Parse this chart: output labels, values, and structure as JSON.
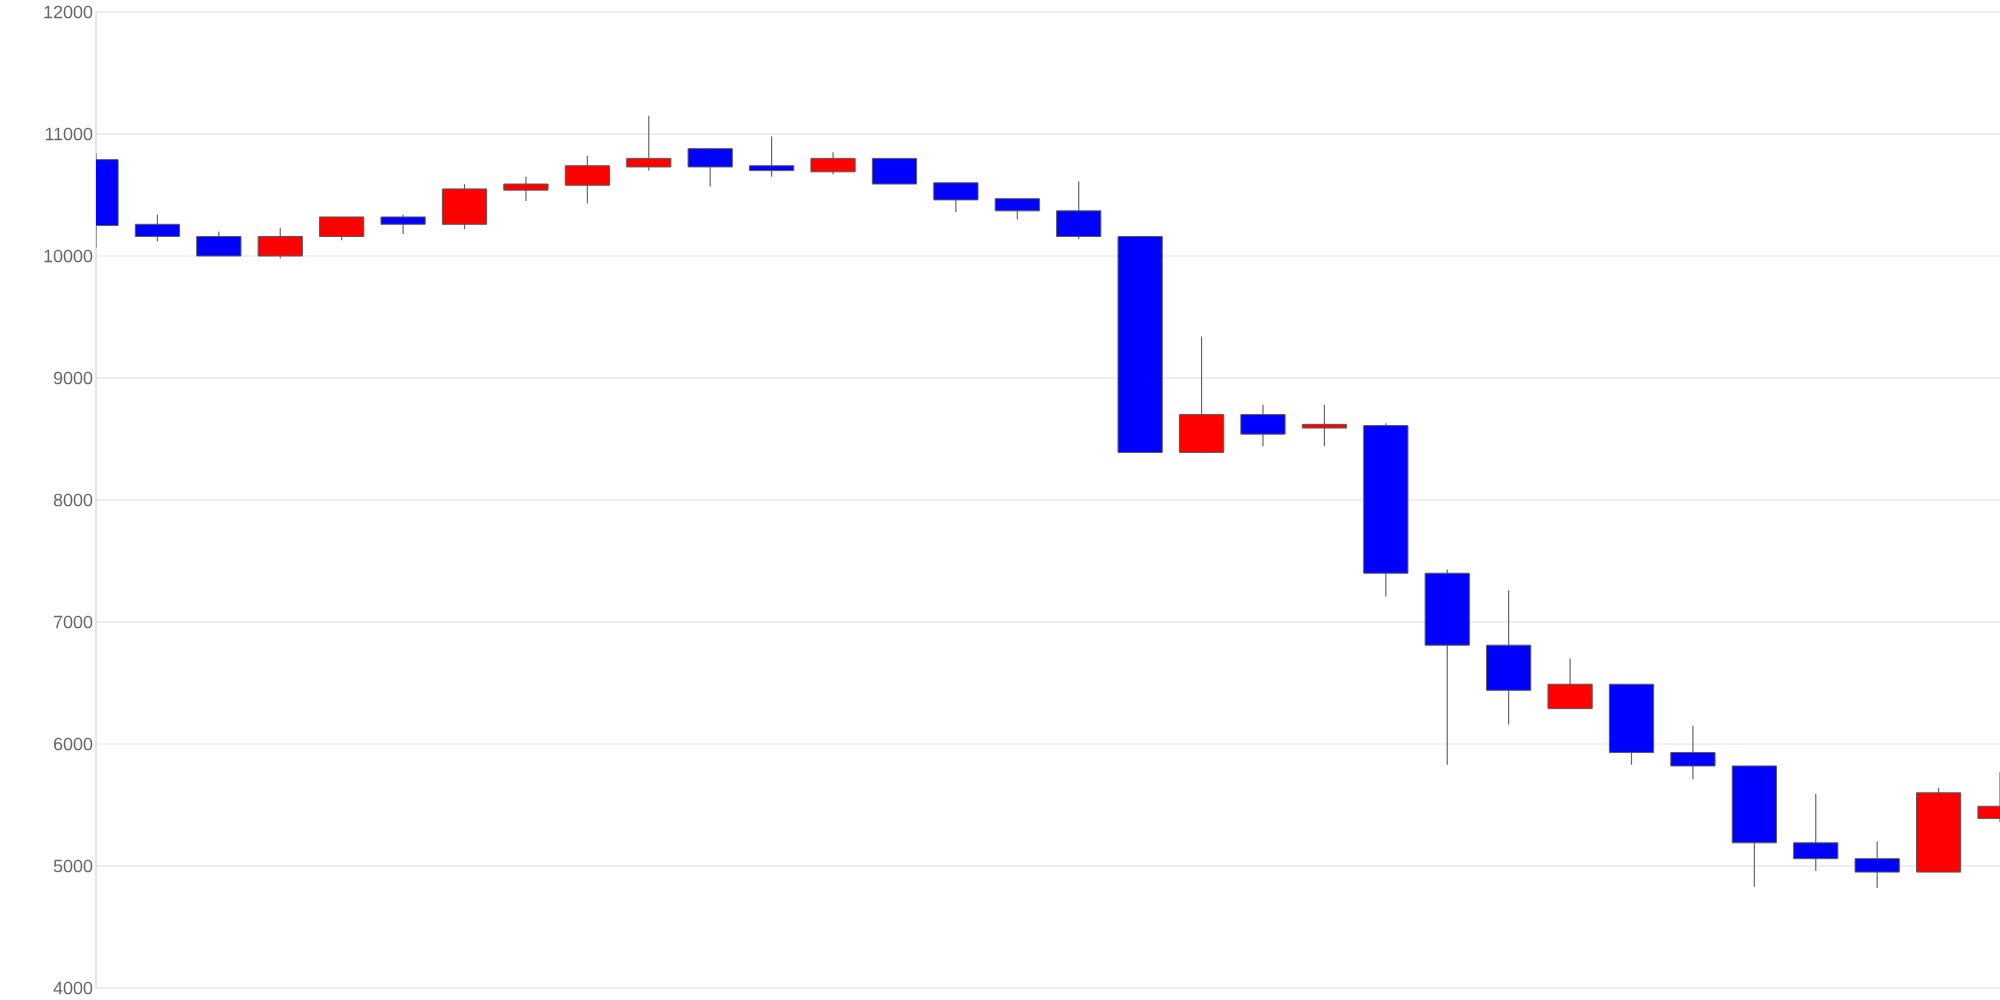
{
  "chart_data": {
    "type": "candlestick",
    "categories": [
      null,
      null,
      null,
      null,
      null,
      null,
      null,
      null,
      null,
      null,
      null,
      null,
      null,
      null,
      null,
      null,
      null,
      null,
      null,
      null,
      null,
      null,
      null,
      null,
      null,
      null,
      null,
      null,
      null,
      null,
      null,
      null
    ],
    "ohlc": [
      [
        10790,
        10840,
        10070,
        10250
      ],
      [
        10260,
        10340,
        10120,
        10160
      ],
      [
        10160,
        10200,
        10000,
        10000
      ],
      [
        10000,
        10230,
        9980,
        10160
      ],
      [
        10160,
        10320,
        10130,
        10320
      ],
      [
        10320,
        10340,
        10180,
        10260
      ],
      [
        10260,
        10590,
        10220,
        10550
      ],
      [
        10540,
        10650,
        10450,
        10590
      ],
      [
        10580,
        10820,
        10430,
        10740
      ],
      [
        10730,
        11150,
        10700,
        10800
      ],
      [
        10880,
        10880,
        10570,
        10730
      ],
      [
        10740,
        10980,
        10650,
        10700
      ],
      [
        10690,
        10850,
        10670,
        10800
      ],
      [
        10800,
        10800,
        10590,
        10590
      ],
      [
        10600,
        10600,
        10360,
        10460
      ],
      [
        10470,
        10470,
        10300,
        10370
      ],
      [
        10370,
        10610,
        10140,
        10160
      ],
      [
        10160,
        10160,
        8390,
        8390
      ],
      [
        8390,
        9340,
        8390,
        8700
      ],
      [
        8700,
        8780,
        8440,
        8540
      ],
      [
        8590,
        8780,
        8440,
        8620
      ],
      [
        8610,
        8630,
        7210,
        7400
      ],
      [
        7400,
        7430,
        5830,
        6810
      ],
      [
        6810,
        7260,
        6160,
        6440
      ],
      [
        6290,
        6700,
        6290,
        6490
      ],
      [
        6490,
        6490,
        5830,
        5930
      ],
      [
        5930,
        6150,
        5710,
        5820
      ],
      [
        5820,
        5820,
        4830,
        5190
      ],
      [
        5190,
        5590,
        4960,
        5060
      ],
      [
        5060,
        5200,
        4820,
        4950
      ],
      [
        4950,
        5640,
        4950,
        5600
      ],
      [
        5390,
        5770,
        5360,
        5490
      ]
    ],
    "colors": [
      "#0000ff",
      "#0000ff",
      "#0000ff",
      "#ff0000",
      "#ff0000",
      "#0000ff",
      "#ff0000",
      "#ff0000",
      "#ff0000",
      "#ff0000",
      "#0000ff",
      "#0000ff",
      "#ff0000",
      "#0000ff",
      "#0000ff",
      "#0000ff",
      "#0000ff",
      "#0000ff",
      "#ff0000",
      "#0000ff",
      "#ff0000",
      "#0000ff",
      "#0000ff",
      "#0000ff",
      "#ff0000",
      "#0000ff",
      "#0000ff",
      "#0000ff",
      "#0000ff",
      "#0000ff",
      "#ff0000",
      "#ff0000"
    ],
    "ylim": [
      4000,
      12000
    ],
    "yticks": [
      4000,
      5000,
      6000,
      7000,
      8000,
      9000,
      10000,
      11000,
      12000
    ],
    "grid": "y"
  }
}
